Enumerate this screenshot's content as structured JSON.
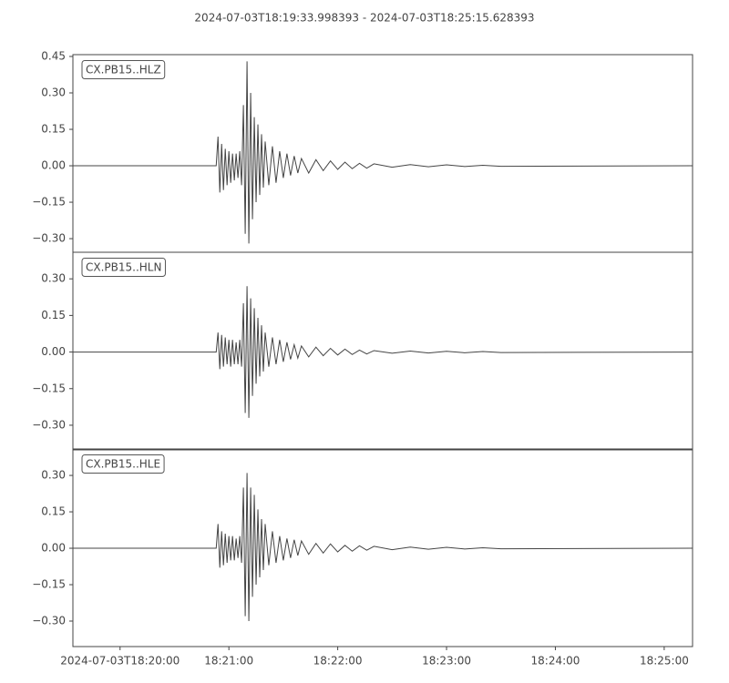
{
  "title": "2024-07-03T18:19:33.998393  -  2024-07-03T18:25:15.628393",
  "chart_data": [
    {
      "type": "line",
      "label": "CX.PB15..HLZ",
      "color": "#444444",
      "xlim": [
        "2024-07-03T18:19:33.998393",
        "2024-07-03T18:25:15.628393"
      ],
      "ylim": [
        -0.356,
        0.4575
      ],
      "yticks": [
        {
          "value": -0.3,
          "label": "−0.30"
        },
        {
          "value": -0.15,
          "label": "−0.15"
        },
        {
          "value": 0,
          "label": "0.00"
        },
        {
          "value": 0.15,
          "label": "0.15"
        },
        {
          "value": 0.3,
          "label": "0.30"
        },
        {
          "value": 0.45,
          "label": "0.45"
        }
      ],
      "x": [
        "2024-07-03T18:19:33.998393",
        "2024-07-03T18:20:53",
        "2024-07-03T18:20:54",
        "2024-07-03T18:20:55",
        "2024-07-03T18:20:56",
        "2024-07-03T18:20:57",
        "2024-07-03T18:20:58",
        "2024-07-03T18:20:59",
        "2024-07-03T18:21:00",
        "2024-07-03T18:21:01",
        "2024-07-03T18:21:02",
        "2024-07-03T18:21:03",
        "2024-07-03T18:21:04",
        "2024-07-03T18:21:05",
        "2024-07-03T18:21:06",
        "2024-07-03T18:21:07",
        "2024-07-03T18:21:08",
        "2024-07-03T18:21:09",
        "2024-07-03T18:21:10",
        "2024-07-03T18:21:11",
        "2024-07-03T18:21:12",
        "2024-07-03T18:21:13",
        "2024-07-03T18:21:14",
        "2024-07-03T18:21:15",
        "2024-07-03T18:21:16",
        "2024-07-03T18:21:17",
        "2024-07-03T18:21:18",
        "2024-07-03T18:21:19",
        "2024-07-03T18:21:20",
        "2024-07-03T18:21:22",
        "2024-07-03T18:21:24",
        "2024-07-03T18:21:26",
        "2024-07-03T18:21:28",
        "2024-07-03T18:21:30",
        "2024-07-03T18:21:32",
        "2024-07-03T18:21:34",
        "2024-07-03T18:21:36",
        "2024-07-03T18:21:38",
        "2024-07-03T18:21:40",
        "2024-07-03T18:21:44",
        "2024-07-03T18:21:48",
        "2024-07-03T18:21:52",
        "2024-07-03T18:21:56",
        "2024-07-03T18:22:00",
        "2024-07-03T18:22:04",
        "2024-07-03T18:22:08",
        "2024-07-03T18:22:12",
        "2024-07-03T18:22:16",
        "2024-07-03T18:22:20",
        "2024-07-03T18:22:30",
        "2024-07-03T18:22:40",
        "2024-07-03T18:22:50",
        "2024-07-03T18:23:00",
        "2024-07-03T18:23:10",
        "2024-07-03T18:23:20",
        "2024-07-03T18:23:30",
        "2024-07-03T18:25:15.628393"
      ],
      "values": [
        0,
        0,
        0.12,
        -0.11,
        0.09,
        -0.1,
        0.07,
        -0.08,
        0.06,
        -0.07,
        0.05,
        -0.06,
        0.05,
        -0.05,
        0.06,
        -0.08,
        0.25,
        -0.28,
        0.43,
        -0.32,
        0.3,
        -0.22,
        0.2,
        -0.15,
        0.17,
        -0.12,
        0.13,
        -0.09,
        0.1,
        -0.08,
        0.08,
        -0.07,
        0.06,
        -0.05,
        0.05,
        -0.04,
        0.04,
        -0.03,
        0.03,
        -0.03,
        0.025,
        -0.02,
        0.02,
        -0.015,
        0.015,
        -0.012,
        0.01,
        -0.01,
        0.008,
        -0.006,
        0.005,
        -0.004,
        0.004,
        -0.003,
        0.002,
        -0.002,
        0
      ]
    },
    {
      "type": "line",
      "label": "CX.PB15..HLN",
      "color": "#444444",
      "xlim": [
        "2024-07-03T18:19:33.998393",
        "2024-07-03T18:25:15.628393"
      ],
      "ylim": [
        -0.401,
        0.409
      ],
      "yticks": [
        {
          "value": -0.3,
          "label": "−0.30"
        },
        {
          "value": -0.15,
          "label": "−0.15"
        },
        {
          "value": 0,
          "label": "0.00"
        },
        {
          "value": 0.15,
          "label": "0.15"
        },
        {
          "value": 0.3,
          "label": "0.30"
        }
      ],
      "x": [
        "2024-07-03T18:19:33.998393",
        "2024-07-03T18:20:53",
        "2024-07-03T18:20:54",
        "2024-07-03T18:20:55",
        "2024-07-03T18:20:56",
        "2024-07-03T18:20:57",
        "2024-07-03T18:20:58",
        "2024-07-03T18:20:59",
        "2024-07-03T18:21:00",
        "2024-07-03T18:21:01",
        "2024-07-03T18:21:02",
        "2024-07-03T18:21:03",
        "2024-07-03T18:21:04",
        "2024-07-03T18:21:05",
        "2024-07-03T18:21:06",
        "2024-07-03T18:21:07",
        "2024-07-03T18:21:08",
        "2024-07-03T18:21:09",
        "2024-07-03T18:21:10",
        "2024-07-03T18:21:11",
        "2024-07-03T18:21:12",
        "2024-07-03T18:21:13",
        "2024-07-03T18:21:14",
        "2024-07-03T18:21:15",
        "2024-07-03T18:21:16",
        "2024-07-03T18:21:17",
        "2024-07-03T18:21:18",
        "2024-07-03T18:21:19",
        "2024-07-03T18:21:20",
        "2024-07-03T18:21:22",
        "2024-07-03T18:21:24",
        "2024-07-03T18:21:26",
        "2024-07-03T18:21:28",
        "2024-07-03T18:21:30",
        "2024-07-03T18:21:32",
        "2024-07-03T18:21:34",
        "2024-07-03T18:21:36",
        "2024-07-03T18:21:38",
        "2024-07-03T18:21:40",
        "2024-07-03T18:21:44",
        "2024-07-03T18:21:48",
        "2024-07-03T18:21:52",
        "2024-07-03T18:21:56",
        "2024-07-03T18:22:00",
        "2024-07-03T18:22:04",
        "2024-07-03T18:22:08",
        "2024-07-03T18:22:12",
        "2024-07-03T18:22:16",
        "2024-07-03T18:22:20",
        "2024-07-03T18:22:30",
        "2024-07-03T18:22:40",
        "2024-07-03T18:22:50",
        "2024-07-03T18:23:00",
        "2024-07-03T18:23:10",
        "2024-07-03T18:23:20",
        "2024-07-03T18:23:30",
        "2024-07-03T18:25:15.628393"
      ],
      "values": [
        0,
        0,
        0.08,
        -0.07,
        0.07,
        -0.06,
        0.06,
        -0.05,
        0.05,
        -0.06,
        0.05,
        -0.05,
        0.04,
        -0.05,
        0.05,
        -0.06,
        0.2,
        -0.25,
        0.27,
        -0.27,
        0.22,
        -0.18,
        0.18,
        -0.13,
        0.14,
        -0.1,
        0.11,
        -0.08,
        0.08,
        -0.06,
        0.06,
        -0.05,
        0.05,
        -0.04,
        0.04,
        -0.03,
        0.03,
        -0.025,
        0.025,
        -0.02,
        0.02,
        -0.015,
        0.015,
        -0.012,
        0.012,
        -0.01,
        0.008,
        -0.008,
        0.006,
        -0.005,
        0.004,
        -0.004,
        0.003,
        -0.003,
        0.002,
        -0.002,
        0
      ]
    },
    {
      "type": "line",
      "label": "CX.PB15..HLE",
      "color": "#444444",
      "xlim": [
        "2024-07-03T18:19:33.998393",
        "2024-07-03T18:25:15.628393"
      ],
      "ylim": [
        -0.405,
        0.409
      ],
      "yticks": [
        {
          "value": -0.3,
          "label": "−0.30"
        },
        {
          "value": -0.15,
          "label": "−0.15"
        },
        {
          "value": 0,
          "label": "0.00"
        },
        {
          "value": 0.15,
          "label": "0.15"
        },
        {
          "value": 0.3,
          "label": "0.30"
        }
      ],
      "xticks": [
        "2024-07-03T18:20:00",
        {
          "value": "2024-07-03T18:21:00",
          "label": "18:21:00"
        },
        {
          "value": "2024-07-03T18:22:00",
          "label": "18:22:00"
        },
        {
          "value": "2024-07-03T18:23:00",
          "label": "18:23:00"
        },
        {
          "value": "2024-07-03T18:24:00",
          "label": "18:24:00"
        },
        {
          "value": "2024-07-03T18:25:00",
          "label": "18:25:00"
        }
      ],
      "x": [
        "2024-07-03T18:19:33.998393",
        "2024-07-03T18:20:53",
        "2024-07-03T18:20:54",
        "2024-07-03T18:20:55",
        "2024-07-03T18:20:56",
        "2024-07-03T18:20:57",
        "2024-07-03T18:20:58",
        "2024-07-03T18:20:59",
        "2024-07-03T18:21:00",
        "2024-07-03T18:21:01",
        "2024-07-03T18:21:02",
        "2024-07-03T18:21:03",
        "2024-07-03T18:21:04",
        "2024-07-03T18:21:05",
        "2024-07-03T18:21:06",
        "2024-07-03T18:21:07",
        "2024-07-03T18:21:08",
        "2024-07-03T18:21:09",
        "2024-07-03T18:21:10",
        "2024-07-03T18:21:11",
        "2024-07-03T18:21:12",
        "2024-07-03T18:21:13",
        "2024-07-03T18:21:14",
        "2024-07-03T18:21:15",
        "2024-07-03T18:21:16",
        "2024-07-03T18:21:17",
        "2024-07-03T18:21:18",
        "2024-07-03T18:21:19",
        "2024-07-03T18:21:20",
        "2024-07-03T18:21:22",
        "2024-07-03T18:21:24",
        "2024-07-03T18:21:26",
        "2024-07-03T18:21:28",
        "2024-07-03T18:21:30",
        "2024-07-03T18:21:32",
        "2024-07-03T18:21:34",
        "2024-07-03T18:21:36",
        "2024-07-03T18:21:38",
        "2024-07-03T18:21:40",
        "2024-07-03T18:21:44",
        "2024-07-03T18:21:48",
        "2024-07-03T18:21:52",
        "2024-07-03T18:21:56",
        "2024-07-03T18:22:00",
        "2024-07-03T18:22:04",
        "2024-07-03T18:22:08",
        "2024-07-03T18:22:12",
        "2024-07-03T18:22:16",
        "2024-07-03T18:22:20",
        "2024-07-03T18:22:30",
        "2024-07-03T18:22:40",
        "2024-07-03T18:22:50",
        "2024-07-03T18:23:00",
        "2024-07-03T18:23:10",
        "2024-07-03T18:23:20",
        "2024-07-03T18:23:30",
        "2024-07-03T18:25:15.628393"
      ],
      "values": [
        0,
        0,
        0.1,
        -0.08,
        0.07,
        -0.07,
        0.06,
        -0.06,
        0.05,
        -0.05,
        0.05,
        -0.05,
        0.04,
        -0.04,
        0.05,
        -0.06,
        0.25,
        -0.28,
        0.31,
        -0.3,
        0.25,
        -0.2,
        0.22,
        -0.15,
        0.16,
        -0.12,
        0.12,
        -0.09,
        0.1,
        -0.07,
        0.07,
        -0.06,
        0.05,
        -0.05,
        0.04,
        -0.04,
        0.035,
        -0.03,
        0.03,
        -0.025,
        0.02,
        -0.02,
        0.018,
        -0.015,
        0.012,
        -0.012,
        0.01,
        -0.008,
        0.008,
        -0.006,
        0.005,
        -0.004,
        0.004,
        -0.003,
        0.002,
        -0.002,
        0
      ]
    }
  ]
}
